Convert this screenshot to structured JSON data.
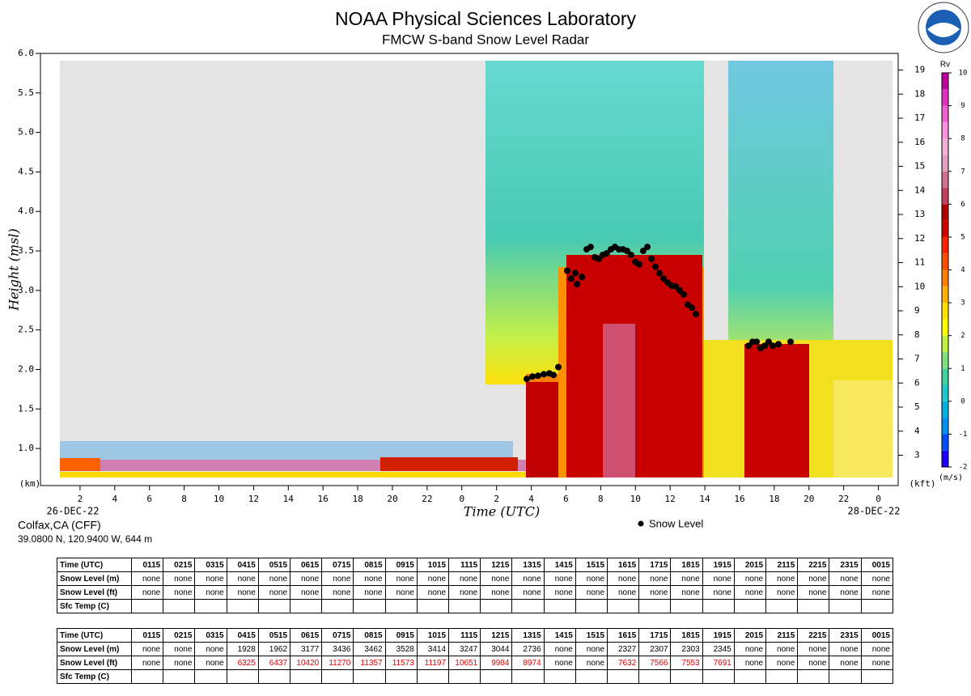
{
  "header": {
    "title": "NOAA Physical Sciences Laboratory",
    "subtitle": "FMCW S-band Snow Level Radar"
  },
  "chart_data": {
    "type": "scatter",
    "x_label": "Time (UTC)",
    "y_label": "Height (msl)",
    "y_units": "(km)",
    "y2_units": "(kft)",
    "start_date": "26-DEC-22",
    "end_date": "28-DEC-22",
    "xlim": [
      -0.28,
      49.14
    ],
    "xticks": [
      2,
      4,
      6,
      8,
      10,
      12,
      14,
      16,
      18,
      20,
      22,
      {
        "value": 24,
        "label": "0"
      },
      {
        "value": 26,
        "label": "2"
      },
      {
        "value": 28,
        "label": "4"
      },
      {
        "value": 30,
        "label": "6"
      },
      {
        "value": 32,
        "label": "8"
      },
      {
        "value": 34,
        "label": "10"
      },
      {
        "value": 36,
        "label": "12"
      },
      {
        "value": 38,
        "label": "14"
      },
      {
        "value": 40,
        "label": "16"
      },
      {
        "value": 42,
        "label": "18"
      },
      {
        "value": 44,
        "label": "20"
      },
      {
        "value": 46,
        "label": "22"
      },
      {
        "value": 48,
        "label": "0"
      }
    ],
    "ylim": [
      0.53,
      6.0
    ],
    "yticks": [
      {
        "value": 1,
        "label": "1.0"
      },
      1.5,
      {
        "value": 2,
        "label": "2.0"
      },
      2.5,
      {
        "value": 3,
        "label": "3.0"
      },
      3.5,
      {
        "value": 4,
        "label": "4.0"
      },
      4.5,
      {
        "value": 5,
        "label": "5.0"
      },
      5.5,
      {
        "value": 6,
        "label": "6.0"
      }
    ],
    "y2lim": [
      1.74,
      19.69
    ],
    "y2ticks": [
      3,
      4,
      5,
      6,
      7,
      8,
      9,
      10,
      11,
      12,
      13,
      14,
      15,
      16,
      17,
      18,
      19
    ],
    "series": [
      {
        "name": "Snow Level",
        "color": "#000000",
        "x": [
          27.74,
          28.07,
          28.39,
          28.72,
          29.04,
          29.28,
          29.56,
          30.07,
          30.3,
          30.53,
          30.63,
          30.91,
          31.19,
          31.42,
          31.66,
          31.89,
          32.12,
          32.35,
          32.59,
          32.82,
          33.05,
          33.29,
          33.52,
          33.75,
          33.99,
          34.22,
          34.45,
          34.69,
          34.92,
          35.15,
          35.38,
          35.62,
          35.85,
          36.08,
          36.32,
          36.55,
          36.78,
          37.02,
          37.25,
          37.48,
          40.51,
          40.75,
          40.98,
          41.21,
          41.45,
          41.68,
          41.91,
          42.24,
          42.94
        ],
        "values": [
          1.88,
          1.91,
          1.92,
          1.94,
          1.95,
          1.93,
          2.03,
          3.25,
          3.15,
          3.22,
          3.08,
          3.17,
          3.52,
          3.55,
          3.42,
          3.4,
          3.45,
          3.47,
          3.52,
          3.55,
          3.52,
          3.52,
          3.5,
          3.45,
          3.36,
          3.33,
          3.5,
          3.55,
          3.4,
          3.3,
          3.22,
          3.15,
          3.1,
          3.06,
          3.05,
          3.0,
          2.95,
          2.82,
          2.78,
          2.7,
          2.3,
          2.35,
          2.35,
          2.27,
          2.3,
          2.35,
          2.3,
          2.32,
          2.35
        ]
      }
    ],
    "colorbar": {
      "label": "Rv",
      "units": "(m/s)",
      "lim": [
        -2,
        10
      ],
      "ticks": [
        -2,
        -1,
        0,
        1,
        2,
        3,
        4,
        5,
        6,
        7,
        8,
        9,
        10
      ],
      "colors": [
        "#1e00ff",
        "#0050ff",
        "#0090f0",
        "#00b0e0",
        "#20c8c8",
        "#40d0a0",
        "#80e080",
        "#c0f040",
        "#ffff00",
        "#ffe000",
        "#ffb000",
        "#ff8000",
        "#ff5000",
        "#ff2000",
        "#d00000",
        "#b00000",
        "#c04060",
        "#d07090",
        "#e0a0c0",
        "#f0b0d8",
        "#ff90e0",
        "#f060d0",
        "#e030c0",
        "#c000a0"
      ]
    }
  },
  "station": {
    "name": "Colfax,CA (CFF)",
    "location": "39.0800 N, 120.9400 W, 644 m"
  },
  "tables": [
    {
      "header": "Time (UTC)",
      "times": [
        "0115",
        "0215",
        "0315",
        "0415",
        "0515",
        "0615",
        "0715",
        "0815",
        "0915",
        "1015",
        "1115",
        "1215",
        "1315",
        "1415",
        "1515",
        "1615",
        "1715",
        "1815",
        "1915",
        "2015",
        "2115",
        "2215",
        "2315",
        "0015"
      ],
      "rows": [
        {
          "label": "Snow Level (m)",
          "cells": [
            "none",
            "none",
            "none",
            "none",
            "none",
            "none",
            "none",
            "none",
            "none",
            "none",
            "none",
            "none",
            "none",
            "none",
            "none",
            "none",
            "none",
            "none",
            "none",
            "none",
            "none",
            "none",
            "none",
            "none"
          ]
        },
        {
          "label": "Snow Level (ft)",
          "cells": [
            "none",
            "none",
            "none",
            "none",
            "none",
            "none",
            "none",
            "none",
            "none",
            "none",
            "none",
            "none",
            "none",
            "none",
            "none",
            "none",
            "none",
            "none",
            "none",
            "none",
            "none",
            "none",
            "none",
            "none"
          ]
        },
        {
          "label": "Sfc Temp (C)"
        }
      ]
    },
    {
      "header": "Time (UTC)",
      "times": [
        "0115",
        "0215",
        "0315",
        "0415",
        "0515",
        "0615",
        "0715",
        "0815",
        "0915",
        "1015",
        "1115",
        "1215",
        "1315",
        "1415",
        "1515",
        "1615",
        "1715",
        "1815",
        "1915",
        "2015",
        "2115",
        "2215",
        "2315",
        "0015"
      ],
      "rows": [
        {
          "label": "Snow Level (m)",
          "cells": [
            "none",
            "none",
            "none",
            1928,
            1962,
            3177,
            3436,
            3462,
            3528,
            3414,
            3247,
            3044,
            2736,
            "none",
            "none",
            2327,
            2307,
            2303,
            2345,
            "none",
            "none",
            "none",
            "none",
            "none"
          ]
        },
        {
          "label": "Snow Level (ft)",
          "color": "#e00000",
          "cells": [
            "none",
            "none",
            "none",
            6325,
            6437,
            10420,
            11270,
            11357,
            11573,
            11197,
            10651,
            9984,
            8974,
            "none",
            "none",
            7632,
            7566,
            7553,
            7691,
            "none",
            "none",
            "none",
            "none",
            "none"
          ]
        },
        {
          "label": "Sfc Temp (C)"
        }
      ]
    }
  ]
}
